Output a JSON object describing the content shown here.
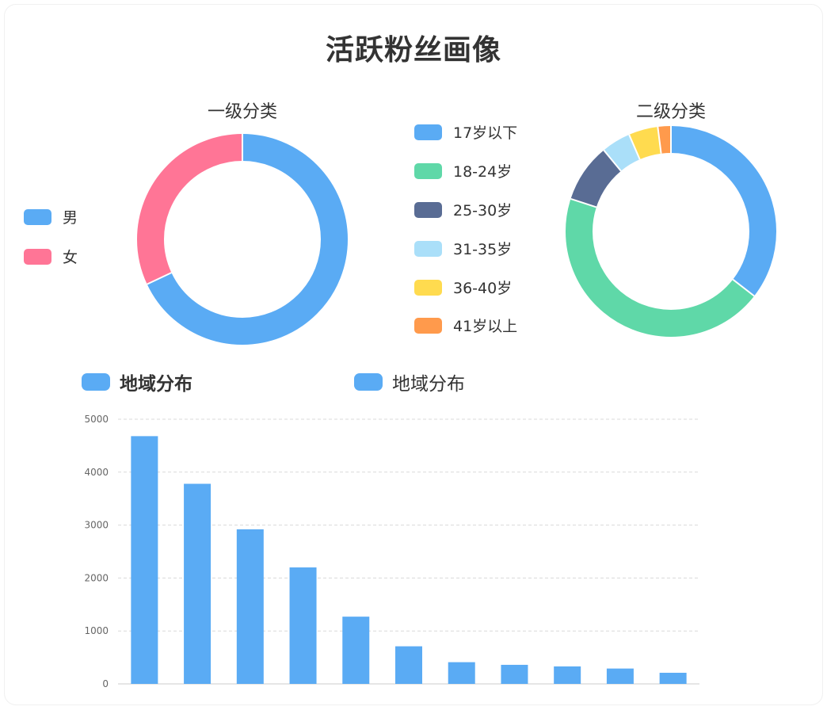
{
  "title": "活跃粉丝画像",
  "pie1": {
    "title": "一级分类",
    "legend": [
      {
        "label": "男",
        "color": "#5aabf4"
      },
      {
        "label": "女",
        "color": "#ff7596"
      }
    ]
  },
  "pie2": {
    "title": "二级分类",
    "legend": [
      {
        "label": "17岁以下",
        "color": "#5aabf4"
      },
      {
        "label": "18-24岁",
        "color": "#5fd8a8"
      },
      {
        "label": "25-30岁",
        "color": "#596c94"
      },
      {
        "label": "31-35岁",
        "color": "#aadff9"
      },
      {
        "label": "36-40岁",
        "color": "#ffdb4f"
      },
      {
        "label": "41岁以上",
        "color": "#ff9a4c"
      }
    ]
  },
  "bar": {
    "legend_left": "地域分布",
    "legend_right": "地域分布",
    "color": "#5aabf4"
  },
  "chart_data": [
    {
      "type": "pie",
      "title": "一级分类",
      "labels": [
        "男",
        "女"
      ],
      "values": [
        68,
        32
      ],
      "colors": [
        "#5aabf4",
        "#ff7596"
      ],
      "donut": true
    },
    {
      "type": "pie",
      "title": "二级分类",
      "labels": [
        "17岁以下",
        "18-24岁",
        "25-30岁",
        "31-35岁",
        "36-40岁",
        "41岁以上"
      ],
      "values": [
        35.5,
        44.5,
        9,
        4.5,
        4.5,
        2
      ],
      "colors": [
        "#5aabf4",
        "#5fd8a8",
        "#596c94",
        "#aadff9",
        "#ffdb4f",
        "#ff9a4c"
      ],
      "donut": true
    },
    {
      "type": "bar",
      "series": [
        {
          "name": "地域分布",
          "values": [
            4680,
            3780,
            2920,
            2200,
            1270,
            710,
            410,
            360,
            330,
            290,
            210
          ]
        }
      ],
      "ylim": [
        0,
        5000
      ],
      "yticks": [
        0,
        1000,
        2000,
        3000,
        4000,
        5000
      ],
      "grid": true
    }
  ]
}
